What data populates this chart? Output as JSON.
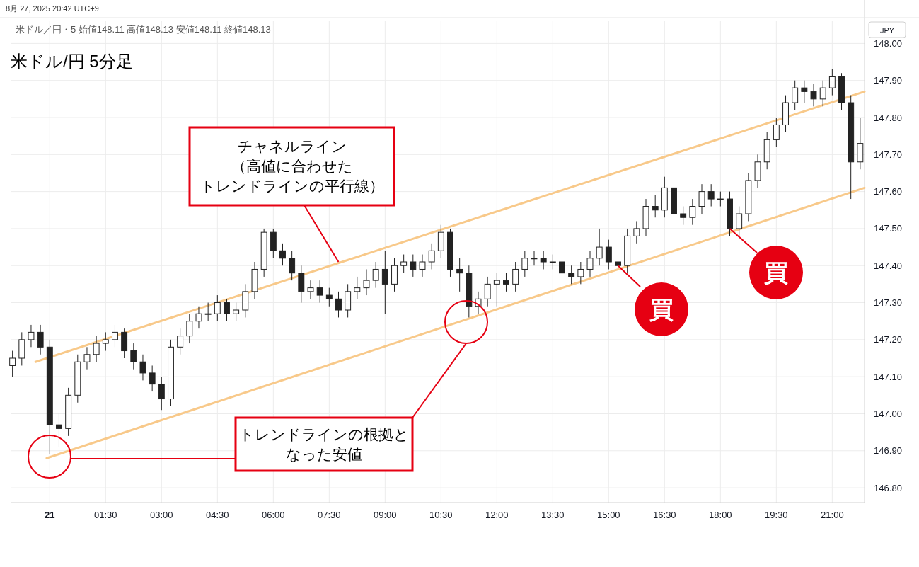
{
  "chart_data": {
    "type": "candlestick",
    "title": "米ドル/円 5分足",
    "subtitle": "米ドル／円・5 始値148.11 高値148.13 安値148.11 終値148.13",
    "ylabel": "JPY",
    "annotations": [
      "8月 27, 2025 20:42 UTC+9",
      {
        "text": "チャネルライン（高値に合わせたトレンドラインの平行線）",
        "x": "2025-08-21T07:45",
        "y": 147.41
      },
      "トレンドラインの根拠となった安値",
      {
        "text": "買",
        "x": "2025-08-21T15:15",
        "y": 147.4
      },
      {
        "text": "買",
        "x": "2025-08-21T18:15",
        "y": 147.5
      }
    ],
    "x": [
      "2025-08-20T23:00",
      "2025-08-20T23:15",
      "2025-08-20T23:30",
      "2025-08-20T23:45",
      "2025-08-21T00:00",
      "2025-08-21T00:15",
      "2025-08-21T00:30",
      "2025-08-21T00:45",
      "2025-08-21T01:00",
      "2025-08-21T01:15",
      "2025-08-21T01:30",
      "2025-08-21T01:45",
      "2025-08-21T02:00",
      "2025-08-21T02:15",
      "2025-08-21T02:30",
      "2025-08-21T02:45",
      "2025-08-21T03:00",
      "2025-08-21T03:15",
      "2025-08-21T03:30",
      "2025-08-21T03:45",
      "2025-08-21T04:00",
      "2025-08-21T04:15",
      "2025-08-21T04:30",
      "2025-08-21T04:45",
      "2025-08-21T05:00",
      "2025-08-21T05:15",
      "2025-08-21T05:30",
      "2025-08-21T05:45",
      "2025-08-21T06:00",
      "2025-08-21T06:15",
      "2025-08-21T06:30",
      "2025-08-21T06:45",
      "2025-08-21T07:00",
      "2025-08-21T07:15",
      "2025-08-21T07:30",
      "2025-08-21T07:45",
      "2025-08-21T08:00",
      "2025-08-21T08:15",
      "2025-08-21T08:30",
      "2025-08-21T08:45",
      "2025-08-21T09:00",
      "2025-08-21T09:15",
      "2025-08-21T09:30",
      "2025-08-21T09:45",
      "2025-08-21T10:00",
      "2025-08-21T10:15",
      "2025-08-21T10:30",
      "2025-08-21T10:45",
      "2025-08-21T11:00",
      "2025-08-21T11:15",
      "2025-08-21T11:30",
      "2025-08-21T11:45",
      "2025-08-21T12:00",
      "2025-08-21T12:15",
      "2025-08-21T12:30",
      "2025-08-21T12:45",
      "2025-08-21T13:00",
      "2025-08-21T13:15",
      "2025-08-21T13:30",
      "2025-08-21T13:45",
      "2025-08-21T14:00",
      "2025-08-21T14:15",
      "2025-08-21T14:30",
      "2025-08-21T14:45",
      "2025-08-21T15:00",
      "2025-08-21T15:15",
      "2025-08-21T15:30",
      "2025-08-21T15:45",
      "2025-08-21T16:00",
      "2025-08-21T16:15",
      "2025-08-21T16:30",
      "2025-08-21T16:45",
      "2025-08-21T17:00",
      "2025-08-21T17:15",
      "2025-08-21T17:30",
      "2025-08-21T17:45",
      "2025-08-21T18:00",
      "2025-08-21T18:15",
      "2025-08-21T18:30",
      "2025-08-21T18:45",
      "2025-08-21T19:00",
      "2025-08-21T19:15",
      "2025-08-21T19:30",
      "2025-08-21T19:45",
      "2025-08-21T20:00",
      "2025-08-21T20:15",
      "2025-08-21T20:30",
      "2025-08-21T20:45",
      "2025-08-21T21:00",
      "2025-08-21T21:15",
      "2025-08-21T21:30",
      "2025-08-21T21:45"
    ],
    "ohlc": [
      [
        147.13,
        147.17,
        147.1,
        147.15
      ],
      [
        147.15,
        147.22,
        147.13,
        147.2
      ],
      [
        147.2,
        147.24,
        147.18,
        147.22
      ],
      [
        147.22,
        147.24,
        147.16,
        147.18
      ],
      [
        147.18,
        147.2,
        146.89,
        146.97
      ],
      [
        146.97,
        147.0,
        146.91,
        146.96
      ],
      [
        146.96,
        147.07,
        146.94,
        147.05
      ],
      [
        147.05,
        147.16,
        147.03,
        147.14
      ],
      [
        147.14,
        147.18,
        147.12,
        147.16
      ],
      [
        147.16,
        147.21,
        147.14,
        147.19
      ],
      [
        147.19,
        147.22,
        147.17,
        147.2
      ],
      [
        147.2,
        147.24,
        147.18,
        147.22
      ],
      [
        147.22,
        147.23,
        147.15,
        147.17
      ],
      [
        147.17,
        147.19,
        147.12,
        147.14
      ],
      [
        147.14,
        147.16,
        147.09,
        147.11
      ],
      [
        147.11,
        147.13,
        147.06,
        147.08
      ],
      [
        147.08,
        147.1,
        147.01,
        147.04
      ],
      [
        147.04,
        147.2,
        147.02,
        147.18
      ],
      [
        147.18,
        147.23,
        147.16,
        147.21
      ],
      [
        147.21,
        147.27,
        147.19,
        147.25
      ],
      [
        147.25,
        147.29,
        147.23,
        147.27
      ],
      [
        147.27,
        147.3,
        147.25,
        147.27
      ],
      [
        147.27,
        147.32,
        147.25,
        147.3
      ],
      [
        147.3,
        147.31,
        147.25,
        147.27
      ],
      [
        147.27,
        147.3,
        147.25,
        147.28
      ],
      [
        147.28,
        147.35,
        147.26,
        147.33
      ],
      [
        147.33,
        147.41,
        147.31,
        147.39
      ],
      [
        147.39,
        147.5,
        147.37,
        147.49
      ],
      [
        147.49,
        147.5,
        147.42,
        147.44
      ],
      [
        147.44,
        147.46,
        147.4,
        147.42
      ],
      [
        147.42,
        147.44,
        147.36,
        147.38
      ],
      [
        147.38,
        147.4,
        147.3,
        147.33
      ],
      [
        147.33,
        147.36,
        147.31,
        147.34
      ],
      [
        147.34,
        147.36,
        147.3,
        147.32
      ],
      [
        147.32,
        147.34,
        147.29,
        147.31
      ],
      [
        147.31,
        147.33,
        147.26,
        147.28
      ],
      [
        147.28,
        147.35,
        147.26,
        147.33
      ],
      [
        147.33,
        147.37,
        147.31,
        147.34
      ],
      [
        147.34,
        147.39,
        147.32,
        147.36
      ],
      [
        147.36,
        147.41,
        147.34,
        147.39
      ],
      [
        147.39,
        147.44,
        147.27,
        147.35
      ],
      [
        147.35,
        147.42,
        147.33,
        147.4
      ],
      [
        147.4,
        147.43,
        147.38,
        147.41
      ],
      [
        147.41,
        147.43,
        147.37,
        147.39
      ],
      [
        147.39,
        147.43,
        147.37,
        147.41
      ],
      [
        147.41,
        147.46,
        147.39,
        147.44
      ],
      [
        147.44,
        147.51,
        147.42,
        147.49
      ],
      [
        147.49,
        147.5,
        147.37,
        147.39
      ],
      [
        147.39,
        147.42,
        147.33,
        147.38
      ],
      [
        147.38,
        147.4,
        147.26,
        147.29
      ],
      [
        147.29,
        147.33,
        147.27,
        147.31
      ],
      [
        147.31,
        147.37,
        147.29,
        147.35
      ],
      [
        147.35,
        147.38,
        147.29,
        147.36
      ],
      [
        147.36,
        147.38,
        147.33,
        147.35
      ],
      [
        147.35,
        147.41,
        147.33,
        147.39
      ],
      [
        147.39,
        147.44,
        147.37,
        147.42
      ],
      [
        147.42,
        147.44,
        147.4,
        147.42
      ],
      [
        147.42,
        147.44,
        147.39,
        147.41
      ],
      [
        147.41,
        147.43,
        147.39,
        147.41
      ],
      [
        147.41,
        147.43,
        147.36,
        147.38
      ],
      [
        147.38,
        147.4,
        147.35,
        147.37
      ],
      [
        147.37,
        147.41,
        147.35,
        147.39
      ],
      [
        147.39,
        147.44,
        147.37,
        147.42
      ],
      [
        147.42,
        147.5,
        147.4,
        147.45
      ],
      [
        147.45,
        147.47,
        147.39,
        147.41
      ],
      [
        147.41,
        147.43,
        147.34,
        147.4
      ],
      [
        147.4,
        147.5,
        147.38,
        147.48
      ],
      [
        147.48,
        147.52,
        147.46,
        147.5
      ],
      [
        147.5,
        147.58,
        147.48,
        147.56
      ],
      [
        147.56,
        147.59,
        147.53,
        147.55
      ],
      [
        147.55,
        147.64,
        147.53,
        147.61
      ],
      [
        147.61,
        147.62,
        147.52,
        147.54
      ],
      [
        147.54,
        147.56,
        147.51,
        147.53
      ],
      [
        147.53,
        147.58,
        147.51,
        147.56
      ],
      [
        147.56,
        147.62,
        147.54,
        147.6
      ],
      [
        147.6,
        147.62,
        147.56,
        147.58
      ],
      [
        147.58,
        147.6,
        147.56,
        147.58
      ],
      [
        147.58,
        147.6,
        147.48,
        147.5
      ],
      [
        147.5,
        147.56,
        147.48,
        147.54
      ],
      [
        147.54,
        147.65,
        147.52,
        147.63
      ],
      [
        147.63,
        147.7,
        147.61,
        147.68
      ],
      [
        147.68,
        147.76,
        147.66,
        147.74
      ],
      [
        147.74,
        147.8,
        147.72,
        147.78
      ],
      [
        147.78,
        147.86,
        147.76,
        147.84
      ],
      [
        147.84,
        147.9,
        147.82,
        147.88
      ],
      [
        147.88,
        147.9,
        147.84,
        147.87
      ],
      [
        147.87,
        147.89,
        147.83,
        147.85
      ],
      [
        147.85,
        147.9,
        147.83,
        147.88
      ],
      [
        147.88,
        147.93,
        147.86,
        147.91
      ],
      [
        147.91,
        147.92,
        147.82,
        147.84
      ],
      [
        147.84,
        147.86,
        147.58,
        147.68
      ],
      [
        147.68,
        147.8,
        147.66,
        147.73
      ]
    ],
    "series": [
      {
        "type": "line",
        "color": "#f8c98a",
        "x": [
          "2025-08-20T23:37",
          "2025-08-21T21:52"
        ],
        "values": [
          147.14,
          147.87
        ]
      },
      {
        "type": "line",
        "color": "#f8c98a",
        "x": [
          "2025-08-20T23:55",
          "2025-08-21T21:52"
        ],
        "values": [
          146.88,
          147.61
        ]
      }
    ],
    "xlim": [
      "2025-08-20T22:57",
      "2025-08-21T21:52"
    ],
    "ylim": [
      146.76,
      148.06
    ],
    "xticks": [
      {
        "value": "2025-08-21T00:00",
        "label": "21"
      },
      {
        "value": "2025-08-21T01:30",
        "label": "01:30"
      },
      {
        "value": "2025-08-21T03:00",
        "label": "03:00"
      },
      {
        "value": "2025-08-21T04:30",
        "label": "04:30"
      },
      {
        "value": "2025-08-21T06:00",
        "label": "06:00"
      },
      {
        "value": "2025-08-21T07:30",
        "label": "07:30"
      },
      {
        "value": "2025-08-21T09:00",
        "label": "09:00"
      },
      {
        "value": "2025-08-21T10:30",
        "label": "10:30"
      },
      {
        "value": "2025-08-21T12:00",
        "label": "12:00"
      },
      {
        "value": "2025-08-21T13:30",
        "label": "13:30"
      },
      {
        "value": "2025-08-21T15:00",
        "label": "15:00"
      },
      {
        "value": "2025-08-21T16:30",
        "label": "16:30"
      },
      {
        "value": "2025-08-21T18:00",
        "label": "18:00"
      },
      {
        "value": "2025-08-21T19:30",
        "label": "19:30"
      },
      {
        "value": "2025-08-21T21:00",
        "label": "21:00"
      }
    ],
    "yticks": [
      {
        "value": 146.8,
        "label": "146.80"
      },
      {
        "value": 146.9,
        "label": "146.90"
      },
      {
        "value": 147,
        "label": "147.00"
      },
      {
        "value": 147.1,
        "label": "147.10"
      },
      {
        "value": 147.2,
        "label": "147.20"
      },
      {
        "value": 147.3,
        "label": "147.30"
      },
      {
        "value": 147.4,
        "label": "147.40"
      },
      {
        "value": 147.5,
        "label": "147.50"
      },
      {
        "value": 147.6,
        "label": "147.60"
      },
      {
        "value": 147.7,
        "label": "147.70"
      },
      {
        "value": 147.8,
        "label": "147.80"
      },
      {
        "value": 147.9,
        "label": "147.90"
      },
      {
        "value": 148,
        "label": "148.00"
      }
    ],
    "grid": true
  }
}
